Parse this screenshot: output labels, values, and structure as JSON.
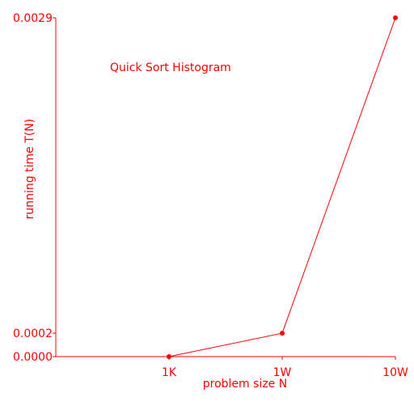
{
  "chart_data": {
    "type": "line",
    "title": "Quick Sort Histogram",
    "xlabel": "problem size N",
    "ylabel": "running time T(N)",
    "categories": [
      "1K",
      "1W",
      "10W"
    ],
    "values": [
      0.0,
      0.0002,
      0.0029
    ],
    "y_ticks": [
      "0.0000",
      "0.0002",
      "0.0029"
    ],
    "ylim": [
      0,
      0.0029
    ],
    "grid": false,
    "color": "#ff0000"
  }
}
